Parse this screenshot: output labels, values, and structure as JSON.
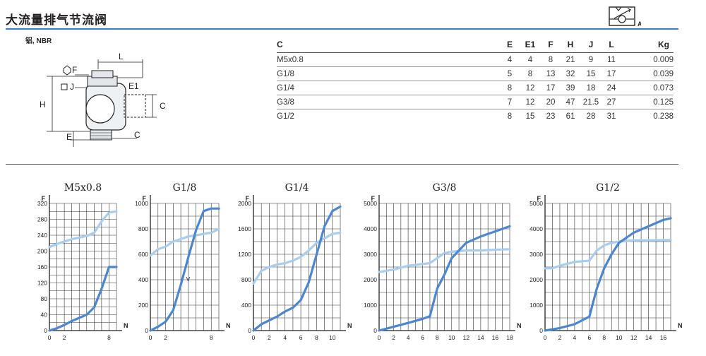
{
  "page": {
    "title": "大流量排气节流阀",
    "material": "铝, NBR",
    "symbol_label": "A"
  },
  "drawing_labels": {
    "F": "F",
    "J": "J",
    "L": "L",
    "E1": "E1",
    "H": "H",
    "C_right": "C",
    "E": "E",
    "C_bottom": "C"
  },
  "spec_table": {
    "headers": [
      "C",
      "E",
      "E1",
      "F",
      "H",
      "J",
      "L",
      "Kg"
    ],
    "rows": [
      [
        "M5x0.8",
        "4",
        "4",
        "8",
        "21",
        "9",
        "11",
        "0.009"
      ],
      [
        "G1/8",
        "5",
        "8",
        "13",
        "32",
        "15",
        "17",
        "0.039"
      ],
      [
        "G1/4",
        "8",
        "12",
        "17",
        "39",
        "18",
        "24",
        "0.073"
      ],
      [
        "G3/8",
        "7",
        "12",
        "20",
        "47",
        "21.5",
        "27",
        "0.125"
      ],
      [
        "G1/2",
        "8",
        "15",
        "23",
        "61",
        "28",
        "31",
        "0.238"
      ]
    ]
  },
  "colors": {
    "dark_curve": "#4a86d2",
    "light_curve": "#a7cdf0",
    "accent": "#3a7fc9"
  },
  "chart_data": [
    {
      "type": "line",
      "title": "M5x0.8",
      "xlabel": "N",
      "ylabel": "F",
      "xlim": [
        0,
        9
      ],
      "ylim": [
        0,
        320
      ],
      "xticks": [
        0,
        2,
        8
      ],
      "yticks": [
        0,
        40,
        80,
        120,
        160,
        200,
        240,
        280,
        320
      ],
      "series": [
        {
          "x": [
            0,
            1,
            2,
            3,
            4,
            5,
            6,
            7,
            8,
            9
          ],
          "y": [
            210,
            218,
            224,
            230,
            234,
            238,
            246,
            275,
            297,
            300
          ]
        },
        {
          "x": [
            0,
            1,
            2,
            3,
            4,
            5,
            6,
            7,
            8,
            9
          ],
          "y": [
            0,
            6,
            14,
            24,
            32,
            40,
            58,
            105,
            160,
            160
          ]
        }
      ]
    },
    {
      "type": "line",
      "title": "G1/8",
      "xlabel": "N",
      "ylabel": "F",
      "xlim": [
        0,
        9
      ],
      "ylim": [
        0,
        1000
      ],
      "xticks": [
        0,
        2,
        8
      ],
      "yticks": [
        0,
        200,
        400,
        600,
        800,
        1000
      ],
      "series": [
        {
          "x": [
            0,
            1,
            2,
            3,
            4,
            5,
            6,
            7,
            8,
            9
          ],
          "y": [
            590,
            640,
            660,
            700,
            720,
            740,
            750,
            760,
            770,
            800
          ]
        },
        {
          "x": [
            0,
            1,
            2,
            3,
            4,
            5,
            6,
            7,
            8,
            9
          ],
          "y": [
            0,
            30,
            70,
            160,
            360,
            580,
            790,
            940,
            960,
            960
          ]
        }
      ],
      "annotations": [
        "V"
      ]
    },
    {
      "type": "line",
      "title": "G1/4",
      "xlabel": "N",
      "ylabel": "F",
      "xlim": [
        0,
        11
      ],
      "ylim": [
        0,
        2000
      ],
      "xticks": [
        0,
        2,
        4,
        6,
        8,
        10
      ],
      "yticks": [
        0,
        400,
        800,
        1200,
        1600,
        2000
      ],
      "series": [
        {
          "x": [
            0,
            1,
            2,
            3,
            4,
            5,
            6,
            7,
            8,
            9,
            10,
            11
          ],
          "y": [
            740,
            940,
            1000,
            1040,
            1060,
            1100,
            1160,
            1260,
            1380,
            1450,
            1520,
            1540
          ]
        },
        {
          "x": [
            0,
            1,
            2,
            3,
            4,
            5,
            6,
            7,
            8,
            9,
            10,
            11
          ],
          "y": [
            0,
            100,
            160,
            220,
            300,
            360,
            480,
            760,
            1200,
            1640,
            1880,
            1950
          ]
        }
      ]
    },
    {
      "type": "line",
      "title": "G3/8",
      "xlabel": "N",
      "ylabel": "F",
      "xlim": [
        0,
        18
      ],
      "ylim": [
        0,
        5000
      ],
      "xticks": [
        0,
        2,
        4,
        6,
        8,
        10,
        12,
        14,
        16,
        18
      ],
      "yticks": [
        0,
        1000,
        2000,
        3000,
        4000,
        5000
      ],
      "series": [
        {
          "x": [
            0,
            2,
            4,
            6,
            7,
            8,
            9,
            10,
            12,
            14,
            16,
            18
          ],
          "y": [
            2300,
            2400,
            2550,
            2620,
            2650,
            2850,
            3050,
            3100,
            3150,
            3150,
            3180,
            3200
          ]
        },
        {
          "x": [
            0,
            2,
            4,
            6,
            7,
            8,
            9,
            10,
            12,
            14,
            16,
            18
          ],
          "y": [
            0,
            150,
            300,
            460,
            560,
            1650,
            2200,
            2850,
            3450,
            3700,
            3900,
            4100
          ]
        }
      ]
    },
    {
      "type": "line",
      "title": "G1/2",
      "xlabel": "N",
      "ylabel": "F",
      "xlim": [
        0,
        17
      ],
      "ylim": [
        0,
        5000
      ],
      "xticks": [
        0,
        2,
        4,
        6,
        8,
        10,
        12,
        14,
        16
      ],
      "yticks": [
        0,
        1000,
        2000,
        3000,
        4000,
        5000
      ],
      "series": [
        {
          "x": [
            0,
            1,
            2,
            4,
            6,
            7,
            8,
            9,
            10,
            12,
            14,
            16,
            17
          ],
          "y": [
            2450,
            2450,
            2550,
            2700,
            2750,
            3150,
            3350,
            3450,
            3500,
            3550,
            3550,
            3560,
            3560
          ]
        },
        {
          "x": [
            0,
            1,
            2,
            4,
            6,
            7,
            8,
            9,
            10,
            12,
            14,
            16,
            17
          ],
          "y": [
            0,
            50,
            100,
            250,
            550,
            1650,
            2450,
            3000,
            3450,
            3850,
            4100,
            4350,
            4420
          ]
        }
      ]
    }
  ]
}
